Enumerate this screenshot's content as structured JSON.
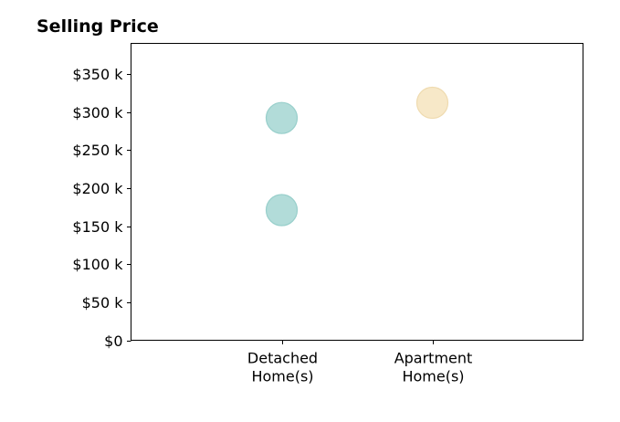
{
  "chart_data": {
    "type": "scatter",
    "title": "Selling Price",
    "xlabel": "",
    "ylabel": "",
    "categories": [
      [
        "Detached",
        "Home(s)"
      ],
      [
        "Apartment",
        "Home(s)"
      ]
    ],
    "x_range": [
      -1,
      2
    ],
    "ylim": [
      0,
      390
    ],
    "y_ticks": [
      0,
      50,
      100,
      150,
      200,
      250,
      300,
      350
    ],
    "y_tick_labels": [
      "$0",
      "$50 k",
      "$100 k",
      "$150 k",
      "$200 k",
      "$250 k",
      "$300 k",
      "$350 k"
    ],
    "grid": false,
    "legend": "none",
    "points": [
      {
        "category": "Detached Home(s)",
        "x": 0,
        "y": 292,
        "color": "#b2dcd9",
        "edge": "#98cfcb"
      },
      {
        "category": "Detached Home(s)",
        "x": 0,
        "y": 171,
        "color": "#b2dcd9",
        "edge": "#98cfcb"
      },
      {
        "category": "Apartment Home(s)",
        "x": 1,
        "y": 312,
        "color": "#f7e8c8",
        "edge": "#efdbb0"
      }
    ]
  }
}
